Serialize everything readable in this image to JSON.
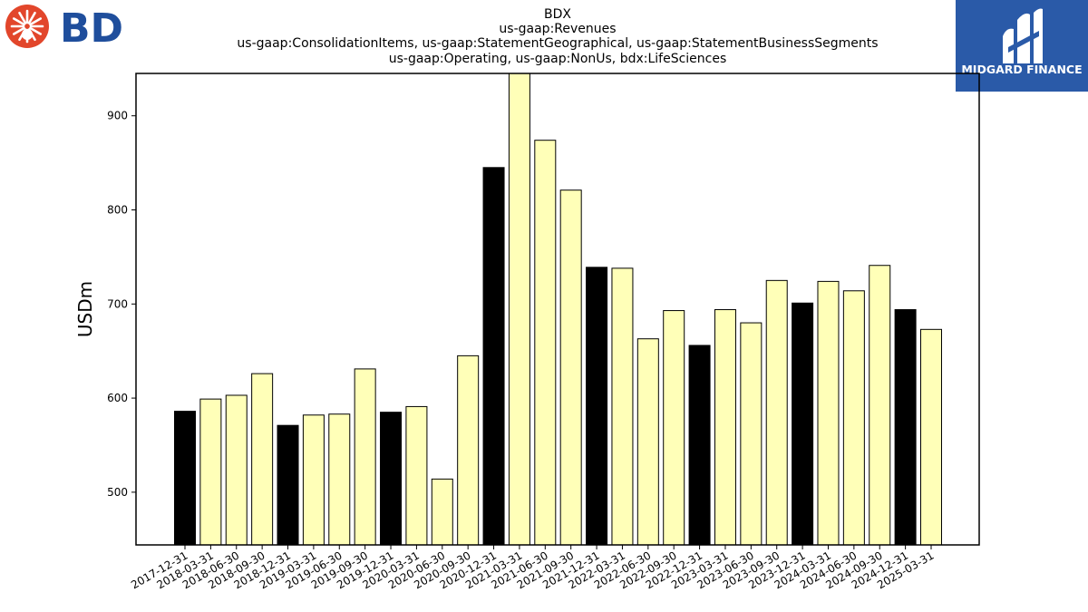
{
  "brand": {
    "left_logo_text": "BD",
    "left_logo_color": "#1f4e9c",
    "left_logo_burst_color": "#e2462b",
    "right_logo_text": "MIDGARD FINANCE",
    "right_logo_bg": "#2a5aa8"
  },
  "chart_data": {
    "type": "bar",
    "title_lines": [
      "BDX",
      "us-gaap:Revenues",
      "us-gaap:ConsolidationItems, us-gaap:StatementGeographical, us-gaap:StatementBusinessSegments",
      "us-gaap:Operating, us-gaap:NonUs, bdx:LifeSciences"
    ],
    "xlabel": "",
    "ylabel": "USDm",
    "ylim": [
      444,
      945
    ],
    "yticks": [
      500,
      600,
      700,
      800,
      900
    ],
    "grid": false,
    "categories": [
      "2017-12-31",
      "2018-03-31",
      "2018-06-30",
      "2018-09-30",
      "2018-12-31",
      "2019-03-31",
      "2019-06-30",
      "2019-09-30",
      "2019-12-31",
      "2020-03-31",
      "2020-06-30",
      "2020-09-30",
      "2020-12-31",
      "2021-03-31",
      "2021-06-30",
      "2021-09-30",
      "2021-12-31",
      "2022-03-31",
      "2022-06-30",
      "2022-09-30",
      "2022-12-31",
      "2023-03-31",
      "2023-06-30",
      "2023-09-30",
      "2023-12-31",
      "2024-03-31",
      "2024-06-30",
      "2024-09-30",
      "2024-12-31",
      "2025-03-31"
    ],
    "values": [
      586,
      599,
      603,
      626,
      571,
      582,
      583,
      631,
      585,
      591,
      514,
      645,
      845,
      945,
      874,
      821,
      739,
      738,
      663,
      693,
      656,
      694,
      680,
      725,
      701,
      724,
      714,
      741,
      694,
      673
    ],
    "highlight": [
      true,
      false,
      false,
      false,
      true,
      false,
      false,
      false,
      true,
      false,
      false,
      false,
      true,
      false,
      false,
      false,
      true,
      false,
      false,
      false,
      true,
      false,
      false,
      false,
      true,
      false,
      false,
      false,
      true,
      false
    ],
    "colors": {
      "normal": "#ffffb8",
      "highlight": "#000000",
      "edge": "#000000"
    }
  }
}
